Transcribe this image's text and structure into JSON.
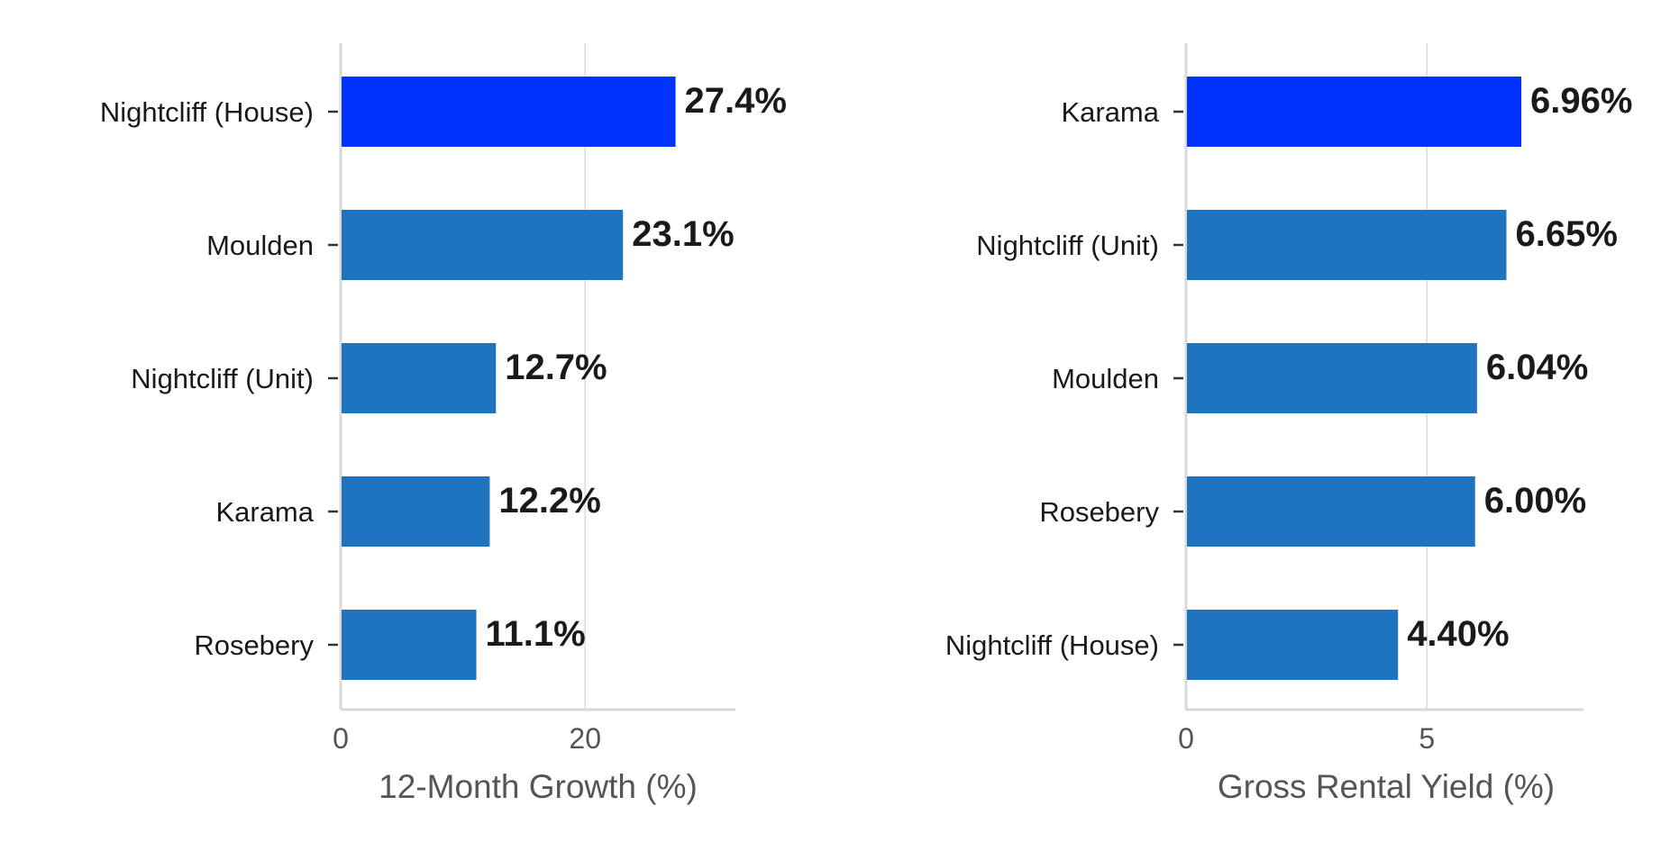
{
  "chart_data": [
    {
      "type": "bar",
      "orientation": "horizontal",
      "categories": [
        "Nightcliff (House)",
        "Moulden",
        "Nightcliff (Unit)",
        "Karama",
        "Rosebery"
      ],
      "values": [
        27.4,
        23.1,
        12.7,
        12.2,
        11.1
      ],
      "value_labels": [
        "27.4%",
        "23.1%",
        "12.7%",
        "12.2%",
        "11.1%"
      ],
      "xlabel": "12-Month Growth (%)",
      "xticks": [
        0,
        20
      ],
      "xtick_labels": [
        "0",
        "20"
      ],
      "xlim": [
        0,
        32.3
      ],
      "grid": "vertical",
      "highlight_index": 0
    },
    {
      "type": "bar",
      "orientation": "horizontal",
      "categories": [
        "Karama",
        "Nightcliff (Unit)",
        "Moulden",
        "Rosebery",
        "Nightcliff (House)"
      ],
      "values": [
        6.96,
        6.65,
        6.04,
        6.0,
        4.4
      ],
      "value_labels": [
        "6.96%",
        "6.65%",
        "6.04%",
        "6.00%",
        "4.40%"
      ],
      "xlabel": "Gross Rental Yield (%)",
      "xticks": [
        0,
        5
      ],
      "xtick_labels": [
        "0",
        "5"
      ],
      "xlim": [
        0,
        8.25
      ],
      "grid": "vertical",
      "highlight_index": 0
    }
  ],
  "colors": {
    "bar": "#1f74bf",
    "highlight": "#0033ff"
  }
}
